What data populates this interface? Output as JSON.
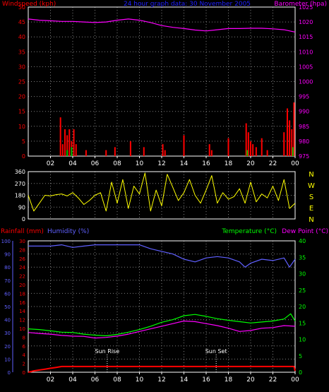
{
  "chart_data": [
    {
      "type": "line",
      "panel": "wind-pressure",
      "title": "24 hour graph data: 30 November 2005",
      "left_axis_label": "Windspeed (kph)",
      "right_axis_label": "Barometer (hpa)",
      "left_ticks": [
        "0",
        "5",
        "10",
        "15",
        "20",
        "25",
        "30",
        "35",
        "40",
        "45",
        "50"
      ],
      "right_ticks": [
        "975",
        "980",
        "985",
        "990",
        "995",
        "1000",
        "1005",
        "1010",
        "1015",
        "1020",
        "1025"
      ],
      "x_ticks": [
        "02",
        "04",
        "06",
        "08",
        "10",
        "12",
        "14",
        "16",
        "18",
        "20",
        "22",
        "00"
      ],
      "x_range_hours": [
        0,
        24
      ],
      "ylim_left": [
        0,
        50
      ],
      "ylim_right": [
        975,
        1025
      ],
      "grid": true,
      "colors": {
        "wind": "#ff0000",
        "gust": "#00c000",
        "pressure": "#ff00ff",
        "left_axis": "#ff0000",
        "right_axis": "#ff00ff"
      },
      "series": [
        {
          "name": "Barometer (hpa)",
          "axis": "right",
          "x": [
            0,
            1,
            2,
            3,
            4,
            5,
            6,
            7,
            8,
            9,
            10,
            11,
            12,
            13,
            14,
            15,
            16,
            17,
            18,
            19,
            20,
            21,
            22,
            23,
            24
          ],
          "y": [
            1021,
            1020.6,
            1020.4,
            1020.2,
            1020.2,
            1020,
            1019.8,
            1020,
            1020.6,
            1021,
            1020.6,
            1019.8,
            1018.8,
            1018.2,
            1017.8,
            1017.3,
            1017.0,
            1017.4,
            1017.8,
            1017.8,
            1017.9,
            1017.9,
            1017.7,
            1017.4,
            1016.6
          ]
        },
        {
          "name": "Windspeed (kph)",
          "axis": "left",
          "x": [
            2.9,
            3.1,
            3.3,
            3.5,
            3.7,
            3.9,
            4.1,
            4.3,
            5.2,
            7.0,
            7.8,
            9.2,
            10.4,
            12.1,
            12.3,
            14.0,
            16.3,
            16.5,
            18.0,
            19.6,
            19.8,
            20.0,
            20.2,
            20.5,
            21.0,
            21.5,
            23.0,
            23.3,
            23.5,
            23.7,
            23.9
          ],
          "y": [
            13,
            4,
            9,
            7,
            9,
            5,
            9,
            4,
            2,
            2,
            3,
            5,
            3,
            4,
            2,
            7,
            4,
            2,
            6,
            11,
            8,
            5,
            4,
            3,
            6,
            2,
            8,
            16,
            12,
            9,
            18
          ]
        }
      ]
    },
    {
      "type": "scatter",
      "panel": "wind-direction",
      "left_ticks": [
        "0",
        "90",
        "180",
        "270",
        "360"
      ],
      "ylim": [
        0,
        360
      ],
      "compass_labels": [
        "N",
        "W",
        "S",
        "E",
        "N"
      ],
      "color": "#ffff00",
      "x": [
        0,
        0.5,
        1,
        1.5,
        2,
        2.5,
        3,
        3.5,
        4,
        4.5,
        5,
        5.5,
        6,
        6.5,
        7,
        7.5,
        8,
        8.5,
        9,
        9.5,
        10,
        10.5,
        11,
        11.5,
        12,
        12.5,
        13,
        13.5,
        14,
        14.5,
        15,
        15.5,
        16,
        16.5,
        17,
        17.5,
        18,
        18.5,
        19,
        19.5,
        20,
        20.5,
        21,
        21.5,
        22,
        22.5,
        23,
        23.5,
        24
      ],
      "y": [
        180,
        60,
        120,
        180,
        175,
        185,
        190,
        175,
        200,
        160,
        110,
        140,
        180,
        200,
        60,
        280,
        120,
        300,
        80,
        250,
        190,
        350,
        60,
        220,
        100,
        340,
        240,
        140,
        200,
        300,
        180,
        120,
        220,
        330,
        120,
        200,
        150,
        170,
        230,
        120,
        280,
        130,
        190,
        160,
        250,
        140,
        300,
        80,
        120
      ]
    },
    {
      "type": "line",
      "panel": "rain-humidity-temperature",
      "left_axis_label_1": "Rainfall (mm)",
      "left_axis_label_2": "Humidity (%)",
      "right_axis_label_1": "Temperature (°C)",
      "right_axis_label_2": "Dew Point (°C)",
      "rain_ticks": [
        "0",
        "2",
        "4",
        "6",
        "8",
        "10",
        "12",
        "14",
        "16",
        "18",
        "20",
        "22",
        "24",
        "26",
        "28",
        "30"
      ],
      "humidity_ticks": [
        "0",
        "10",
        "20",
        "30",
        "40",
        "50",
        "60",
        "70",
        "80",
        "90",
        "100"
      ],
      "temp_ticks": [
        "0",
        "5",
        "10",
        "15",
        "20",
        "25",
        "30",
        "35",
        "40"
      ],
      "ylim_rain": [
        0,
        30
      ],
      "ylim_humidity": [
        0,
        100
      ],
      "ylim_temp": [
        0,
        40
      ],
      "colors": {
        "rain": "#ff0000",
        "humidity": "#6060ff",
        "temperature": "#00ff00",
        "dewpoint": "#ff00ff"
      },
      "annotations": [
        {
          "text": "Sun Rise",
          "hour": 7.1
        },
        {
          "text": "Sun Set",
          "hour": 16.9
        }
      ],
      "series": [
        {
          "name": "Humidity (%)",
          "axis": "humidity",
          "x": [
            0,
            1,
            2,
            3,
            4,
            5,
            6,
            7,
            8,
            9,
            10,
            11,
            12,
            13,
            14,
            15,
            16,
            17,
            18,
            19,
            19.5,
            20,
            21,
            22,
            23,
            23.5,
            24
          ],
          "y": [
            96,
            96,
            96,
            97,
            95,
            96,
            97,
            97,
            97,
            97,
            97,
            94,
            92,
            90,
            86,
            84,
            87,
            88,
            87,
            84,
            80,
            83,
            86,
            85,
            87,
            80,
            86
          ]
        },
        {
          "name": "Temperature (°C)",
          "axis": "temp",
          "x": [
            0,
            1,
            2,
            3,
            4,
            5,
            6,
            7,
            8,
            9,
            10,
            11,
            12,
            13,
            14,
            15,
            16,
            17,
            18,
            19,
            20,
            21,
            22,
            23,
            23.6,
            24
          ],
          "y": [
            13.2,
            13.0,
            12.6,
            12.2,
            12.1,
            11.6,
            11.3,
            11.1,
            11.5,
            12.2,
            13.0,
            14.0,
            15.2,
            16.0,
            17.2,
            17.6,
            17.0,
            16.3,
            15.8,
            15.4,
            15.0,
            15.3,
            15.6,
            16.2,
            17.8,
            15.6
          ]
        },
        {
          "name": "Dew Point (°C)",
          "axis": "temp",
          "x": [
            0,
            1,
            2,
            3,
            4,
            5,
            6,
            7,
            8,
            9,
            10,
            11,
            12,
            13,
            14,
            15,
            16,
            17,
            18,
            19,
            20,
            21,
            22,
            23,
            24
          ],
          "y": [
            12.1,
            11.8,
            11.6,
            11.2,
            11.0,
            10.9,
            10.4,
            10.6,
            11.0,
            11.6,
            12.4,
            13.2,
            14.0,
            14.8,
            15.6,
            15.4,
            14.8,
            14.2,
            13.4,
            12.4,
            12.7,
            13.4,
            13.6,
            14.2,
            14.0
          ]
        },
        {
          "name": "Rainfall (mm)",
          "axis": "rain",
          "x": [
            0,
            0.5,
            1.0,
            1.5,
            2.0,
            2.5,
            3.0,
            4,
            8,
            12,
            16,
            20,
            23.9,
            24
          ],
          "y": [
            0,
            0.3,
            0.5,
            0.7,
            0.9,
            1.1,
            1.3,
            1.3,
            1.3,
            1.3,
            1.3,
            1.3,
            1.3,
            0.3
          ]
        }
      ]
    }
  ]
}
